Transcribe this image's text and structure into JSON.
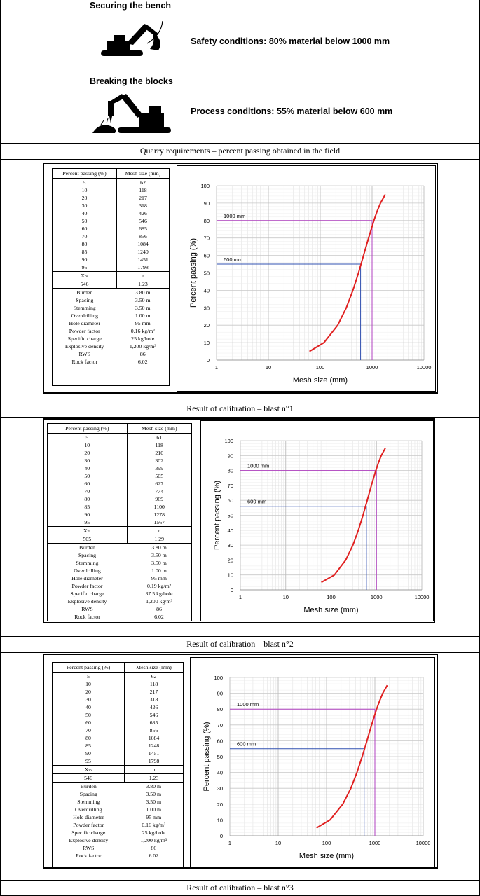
{
  "requirements": {
    "securing_title": "Securing the bench",
    "safety_condition": "Safety conditions: 80% material below 1000 mm",
    "breaking_title": "Breaking the blocks",
    "process_condition": "Process conditions: 55% material below 600 mm",
    "caption": "Quarry requirements – percent passing obtained in the field",
    "icons": [
      "excavator-icon",
      "hydraulic-breaker-icon"
    ]
  },
  "table_headers": {
    "percent": "Percent passing (%)",
    "mesh": "Mesh size (mm)",
    "xm": "Xₘ",
    "n": "n"
  },
  "blasts": [
    {
      "caption": "Result of calibration – blast n°1",
      "rows": [
        [
          "5",
          "62"
        ],
        [
          "10",
          "118"
        ],
        [
          "20",
          "217"
        ],
        [
          "30",
          "318"
        ],
        [
          "40",
          "426"
        ],
        [
          "50",
          "546"
        ],
        [
          "60",
          "685"
        ],
        [
          "70",
          "856"
        ],
        [
          "80",
          "1084"
        ],
        [
          "85",
          "1240"
        ],
        [
          "90",
          "1451"
        ],
        [
          "95",
          "1798"
        ]
      ],
      "xm": "546",
      "n": "1.23",
      "params": [
        [
          "Burden",
          "3.80 m"
        ],
        [
          "Spacing",
          "3.50 m"
        ],
        [
          "Stemming",
          "3.50 m"
        ],
        [
          "Overdrilling",
          "1.00 m"
        ],
        [
          "Hole diameter",
          "95 mm"
        ],
        [
          "Powder factor",
          "0.16 kg/m³"
        ],
        [
          "Specific charge",
          "25 kg/hole"
        ],
        [
          "Explosive density",
          "1,200 kg/m³"
        ],
        [
          "RWS",
          "86"
        ],
        [
          "Rock factor",
          "6.02"
        ]
      ]
    },
    {
      "caption": "Result of calibration – blast n°2",
      "rows": [
        [
          "5",
          "61"
        ],
        [
          "10",
          "118"
        ],
        [
          "20",
          "210"
        ],
        [
          "30",
          "302"
        ],
        [
          "40",
          "399"
        ],
        [
          "50",
          "505"
        ],
        [
          "60",
          "627"
        ],
        [
          "70",
          "774"
        ],
        [
          "80",
          "969"
        ],
        [
          "85",
          "1100"
        ],
        [
          "90",
          "1278"
        ],
        [
          "95",
          "1567"
        ]
      ],
      "xm": "505",
      "n": "1.29",
      "params": [
        [
          "Burden",
          "3.80 m"
        ],
        [
          "Spacing",
          "3.50 m"
        ],
        [
          "Stemming",
          "3.50 m"
        ],
        [
          "Overdrilling",
          "1.00 m"
        ],
        [
          "Hole diameter",
          "95 mm"
        ],
        [
          "Powder factor",
          "0.19 kg/m³"
        ],
        [
          "Specific charge",
          "37.5 kg/hole"
        ],
        [
          "Explosive density",
          "1,200 kg/m³"
        ],
        [
          "RWS",
          "86"
        ],
        [
          "Rock factor",
          "6.02"
        ]
      ]
    },
    {
      "caption": "Result of calibration – blast n°3",
      "rows": [
        [
          "5",
          "62"
        ],
        [
          "10",
          "118"
        ],
        [
          "20",
          "217"
        ],
        [
          "30",
          "318"
        ],
        [
          "40",
          "426"
        ],
        [
          "50",
          "546"
        ],
        [
          "60",
          "685"
        ],
        [
          "70",
          "856"
        ],
        [
          "80",
          "1084"
        ],
        [
          "85",
          "1248"
        ],
        [
          "90",
          "1451"
        ],
        [
          "95",
          "1798"
        ]
      ],
      "xm": "546",
      "n": "1.23",
      "params": [
        [
          "Burden",
          "3.80 m"
        ],
        [
          "Spacing",
          "3.50 m"
        ],
        [
          "Stemming",
          "3.50 m"
        ],
        [
          "Overdrilling",
          "1.00 m"
        ],
        [
          "Hole diameter",
          "95 mm"
        ],
        [
          "Powder factor",
          "0.16 kg/m³"
        ],
        [
          "Specific charge",
          "25 kg/hole"
        ],
        [
          "Explosive density",
          "1,200 kg/m³"
        ],
        [
          "RWS",
          "86"
        ],
        [
          "Rock factor",
          "6.02"
        ]
      ]
    }
  ],
  "chart_data": [
    {
      "type": "line",
      "xlabel": "Mesh size (mm)",
      "ylabel": "Percent passing (%)",
      "x_scale": "log",
      "xlim": [
        1,
        10000
      ],
      "ylim": [
        0,
        100
      ],
      "x_ticks": [
        "1",
        "10",
        "100",
        "1000",
        "10000"
      ],
      "y_ticks": [
        "0",
        "10",
        "20",
        "30",
        "40",
        "50",
        "60",
        "70",
        "80",
        "90",
        "100"
      ],
      "grid": true,
      "series": [
        {
          "x": [
            62,
            118,
            217,
            318,
            426,
            546,
            685,
            856,
            1084,
            1240,
            1451,
            1798
          ],
          "y": [
            5,
            10,
            20,
            30,
            40,
            50,
            60,
            70,
            80,
            85,
            90,
            95
          ],
          "color": "#e02020"
        }
      ],
      "annotations": [
        {
          "label": "1000 mm",
          "x": 1000,
          "y": 80,
          "color": "#b040c0"
        },
        {
          "label": "600 mm",
          "x": 600,
          "y": 55,
          "color": "#3050b0"
        }
      ]
    },
    {
      "type": "line",
      "xlabel": "Mesh size (mm)",
      "ylabel": "Percent passing (%)",
      "x_scale": "log",
      "xlim": [
        1,
        10000
      ],
      "ylim": [
        0,
        100
      ],
      "x_ticks": [
        "1",
        "10",
        "100",
        "1000",
        "10000"
      ],
      "y_ticks": [
        "0",
        "10",
        "20",
        "30",
        "40",
        "50",
        "60",
        "70",
        "80",
        "90",
        "100"
      ],
      "grid": true,
      "series": [
        {
          "x": [
            61,
            118,
            210,
            302,
            399,
            505,
            627,
            774,
            969,
            1100,
            1278,
            1567
          ],
          "y": [
            5,
            10,
            20,
            30,
            40,
            50,
            60,
            70,
            80,
            85,
            90,
            95
          ],
          "color": "#e02020"
        }
      ],
      "annotations": [
        {
          "label": "1000 mm",
          "x": 1000,
          "y": 80,
          "color": "#b040c0"
        },
        {
          "label": "600 mm",
          "x": 600,
          "y": 56,
          "color": "#3050b0"
        }
      ]
    },
    {
      "type": "line",
      "xlabel": "Mesh size (mm)",
      "ylabel": "Percent passing (%)",
      "x_scale": "log",
      "xlim": [
        1,
        10000
      ],
      "ylim": [
        0,
        100
      ],
      "x_ticks": [
        "1",
        "10",
        "100",
        "1000",
        "10000"
      ],
      "y_ticks": [
        "0",
        "10",
        "20",
        "30",
        "40",
        "50",
        "60",
        "70",
        "80",
        "90",
        "100"
      ],
      "grid": true,
      "series": [
        {
          "x": [
            62,
            118,
            217,
            318,
            426,
            546,
            685,
            856,
            1084,
            1248,
            1451,
            1798
          ],
          "y": [
            5,
            10,
            20,
            30,
            40,
            50,
            60,
            70,
            80,
            85,
            90,
            95
          ],
          "color": "#e02020"
        }
      ],
      "annotations": [
        {
          "label": "1000 mm",
          "x": 1000,
          "y": 80,
          "color": "#b040c0"
        },
        {
          "label": "600 mm",
          "x": 600,
          "y": 55,
          "color": "#3050b0"
        }
      ]
    }
  ]
}
